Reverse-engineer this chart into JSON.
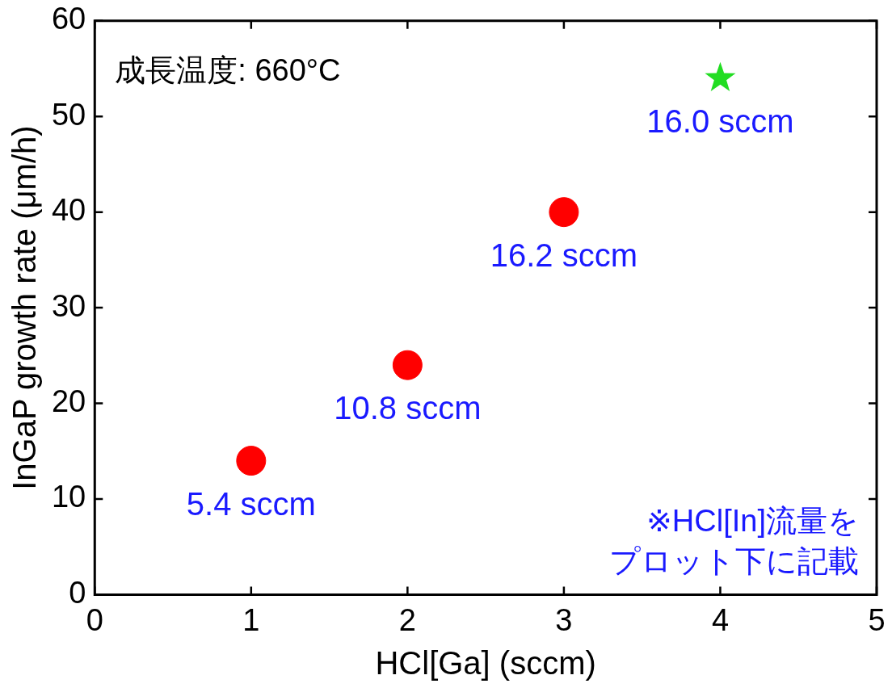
{
  "chart_data": {
    "type": "scatter",
    "xlabel": "HCl[Ga] (sccm)",
    "ylabel": "InGaP growth rate (μm/h)",
    "xlim": [
      0,
      5
    ],
    "xticks": [
      0,
      1,
      2,
      3,
      4,
      5
    ],
    "ylim": [
      0,
      60
    ],
    "yticks": [
      0,
      10,
      20,
      30,
      40,
      50,
      60
    ],
    "marker": "circle",
    "series": [
      {
        "color": "#ff0000",
        "x": [
          1,
          2,
          3
        ],
        "values": [
          14,
          24,
          40
        ]
      },
      {
        "color": "#22dd22",
        "x": [
          4
        ],
        "values": [
          54
        ],
        "marker": "star"
      }
    ],
    "annotations": [
      "成長温度: 660°C",
      {
        "text": "5.4 sccm",
        "x": 1,
        "y": 14
      },
      {
        "text": "10.8 sccm",
        "x": 2,
        "y": 24
      },
      {
        "text": "16.2 sccm",
        "x": 3,
        "y": 40
      },
      {
        "text": "16.0 sccm",
        "x": 4,
        "y": 54
      },
      "※HCl[In]流量を",
      "プロット下に記載"
    ]
  }
}
